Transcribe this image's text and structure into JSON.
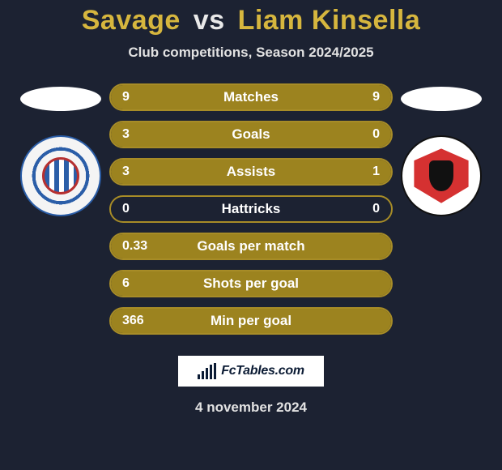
{
  "title": {
    "player1": "Savage",
    "vs": "vs",
    "player2": "Liam Kinsella"
  },
  "subtitle": "Club competitions, Season 2024/2025",
  "crest_left_name": "reading-crest",
  "crest_right_name": "cheltenham-crest",
  "stats": [
    {
      "label": "Matches",
      "left_val": "9",
      "right_val": "9",
      "left_pct": 50,
      "right_pct": 50
    },
    {
      "label": "Goals",
      "left_val": "3",
      "right_val": "0",
      "left_pct": 100,
      "right_pct": 0
    },
    {
      "label": "Assists",
      "left_val": "3",
      "right_val": "1",
      "left_pct": 75,
      "right_pct": 25
    },
    {
      "label": "Hattricks",
      "left_val": "0",
      "right_val": "0",
      "left_pct": 0,
      "right_pct": 0
    },
    {
      "label": "Goals per match",
      "left_val": "0.33",
      "right_val": "",
      "left_pct": 100,
      "right_pct": 0
    },
    {
      "label": "Shots per goal",
      "left_val": "6",
      "right_val": "",
      "left_pct": 100,
      "right_pct": 0
    },
    {
      "label": "Min per goal",
      "left_val": "366",
      "right_val": "",
      "left_pct": 100,
      "right_pct": 0
    }
  ],
  "colors": {
    "background": "#1c2232",
    "accent": "#9c831f",
    "accent_border": "#a78c27",
    "title_player": "#d6b63e"
  },
  "footer": {
    "site": "FcTables.com",
    "date": "4 november 2024"
  }
}
